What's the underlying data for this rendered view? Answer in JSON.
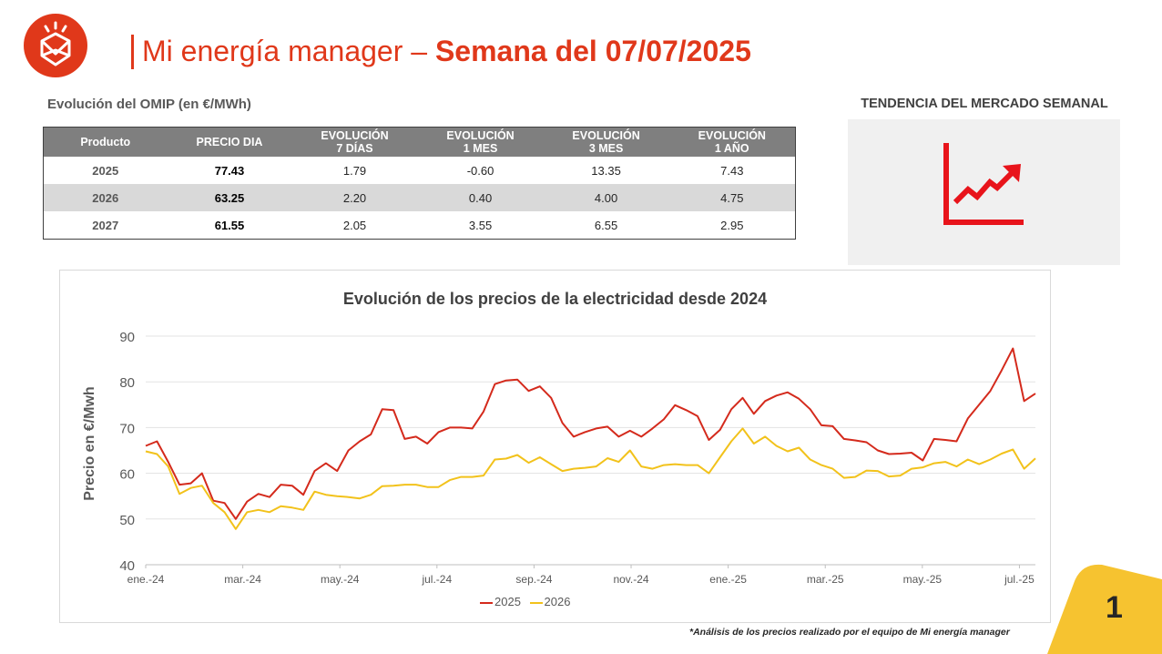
{
  "header": {
    "title_light": "Mi energía manager",
    "title_sep": " – ",
    "title_bold": "Semana del 07/07/2025"
  },
  "omip": {
    "heading": "Evolución del OMIP (en €/MWh)",
    "columns": [
      {
        "line1": "Producto",
        "line2": ""
      },
      {
        "line1": "PRECIO DIA",
        "line2": ""
      },
      {
        "line1": "EVOLUCIÓN",
        "line2": "7 DÍAS"
      },
      {
        "line1": "EVOLUCIÓN",
        "line2": "1 MES"
      },
      {
        "line1": "EVOLUCIÓN",
        "line2": "3 MES"
      },
      {
        "line1": "EVOLUCIÓN",
        "line2": "1 AÑO"
      }
    ],
    "rows": [
      {
        "product": "2025",
        "price": "77.43",
        "d7": "1.79",
        "m1": "-0.60",
        "m3": "13.35",
        "y1": "7.43"
      },
      {
        "product": "2026",
        "price": "63.25",
        "d7": "2.20",
        "m1": "0.40",
        "m3": "4.00",
        "y1": "4.75"
      },
      {
        "product": "2027",
        "price": "61.55",
        "d7": "2.05",
        "m1": "3.55",
        "m3": "6.55",
        "y1": "2.95"
      }
    ]
  },
  "trend": {
    "heading": "TENDENCIA DEL MERCADO SEMANAL",
    "icon": "trend-up-icon",
    "color": "#e8141b"
  },
  "chart_data": {
    "type": "line",
    "title": "Evolución de los precios de la electricidad desde 2024",
    "xlabel": "",
    "ylabel": "Precio en €/Mwh",
    "ylim": [
      40,
      90
    ],
    "yticks": [
      40,
      50,
      60,
      70,
      80,
      90
    ],
    "x_tick_labels": [
      "ene.-24",
      "mar.-24",
      "may.-24",
      "jul.-24",
      "sep.-24",
      "nov.-24",
      "ene.-25",
      "mar.-25",
      "may.-25",
      "jul.-25"
    ],
    "grid": true,
    "legend_position": "bottom",
    "series": [
      {
        "name": "2025",
        "color": "#d42a1c",
        "values": [
          66.0,
          67.0,
          62.5,
          57.5,
          57.8,
          60.0,
          54.0,
          53.5,
          50.0,
          53.8,
          55.5,
          54.8,
          57.5,
          57.3,
          55.3,
          60.5,
          62.2,
          60.5,
          65.0,
          67.0,
          68.5,
          74.0,
          73.8,
          67.5,
          68.0,
          66.5,
          69.0,
          70.0,
          70.0,
          69.8,
          73.5,
          79.5,
          80.3,
          80.5,
          78.0,
          79.0,
          76.5,
          71.0,
          68.0,
          69.0,
          69.8,
          70.2,
          68.0,
          69.3,
          68.0,
          69.8,
          71.8,
          74.9,
          73.8,
          72.5,
          67.3,
          69.5,
          74.0,
          76.5,
          73.0,
          75.8,
          77.0,
          77.7,
          76.3,
          74.0,
          70.5,
          70.3,
          67.5,
          67.2,
          66.8,
          65.0,
          64.2,
          64.3,
          64.5,
          62.8,
          67.5,
          67.3,
          67.0,
          72.0,
          75.0,
          78.0,
          82.5,
          87.3,
          75.8,
          77.43
        ]
      },
      {
        "name": "2026",
        "color": "#f2c21b",
        "values": [
          64.8,
          64.2,
          61.5,
          55.5,
          56.8,
          57.3,
          53.5,
          51.5,
          47.8,
          51.5,
          52.0,
          51.5,
          52.8,
          52.5,
          52.0,
          56.0,
          55.3,
          55.0,
          54.8,
          54.5,
          55.3,
          57.2,
          57.3,
          57.5,
          57.5,
          57.0,
          57.0,
          58.5,
          59.2,
          59.2,
          59.5,
          63.0,
          63.2,
          64.0,
          62.3,
          63.5,
          62.0,
          60.5,
          61.0,
          61.2,
          61.5,
          63.3,
          62.5,
          65.0,
          61.5,
          61.0,
          61.8,
          62.0,
          61.8,
          61.8,
          60.0,
          63.5,
          67.0,
          69.8,
          66.5,
          68.0,
          66.0,
          64.8,
          65.6,
          63.0,
          61.8,
          61.0,
          59.0,
          59.2,
          60.6,
          60.5,
          59.3,
          59.5,
          61.0,
          61.3,
          62.2,
          62.5,
          61.5,
          63.0,
          62.0,
          63.0,
          64.3,
          65.2,
          61.0,
          63.25
        ]
      }
    ]
  },
  "footnote": "*Análisis de los precios realizado por el equipo de Mi energía manager",
  "page_number": "1"
}
